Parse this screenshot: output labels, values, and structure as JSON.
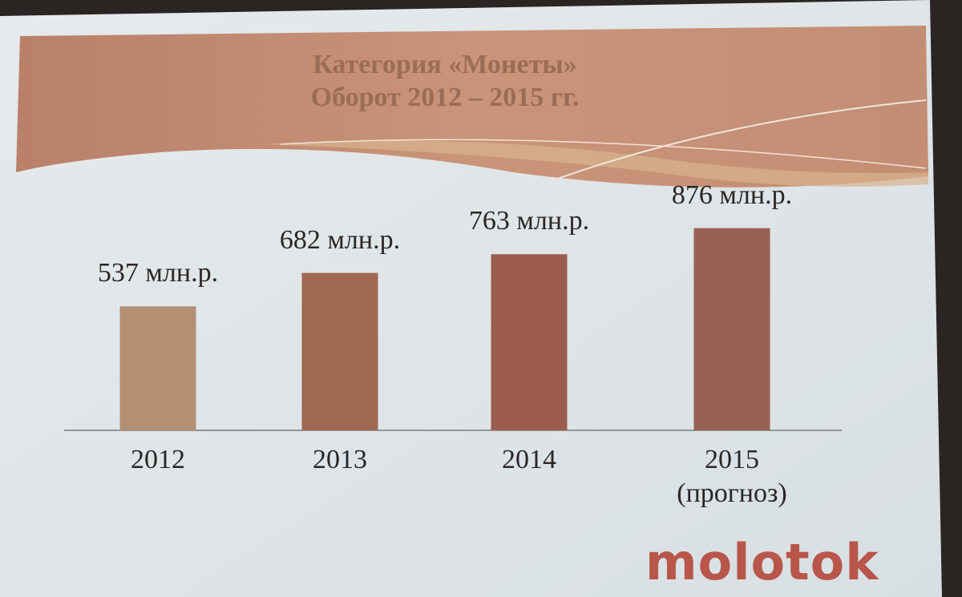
{
  "chart_data": {
    "type": "bar",
    "title": "Категория «Монеты»",
    "subtitle": "Оборот 2012 – 2015 гг.",
    "categories": [
      "2012",
      "2013",
      "2014",
      "2015 (прогноз)"
    ],
    "values": [
      537,
      682,
      763,
      876
    ],
    "value_labels": [
      "537 млн.р.",
      "682 млн.р.",
      "763 млн.р.",
      "876 млн.р."
    ],
    "colors": [
      "#b48f73",
      "#a06850",
      "#9c5d4c",
      "#976154"
    ]
  },
  "logo": "molotok"
}
